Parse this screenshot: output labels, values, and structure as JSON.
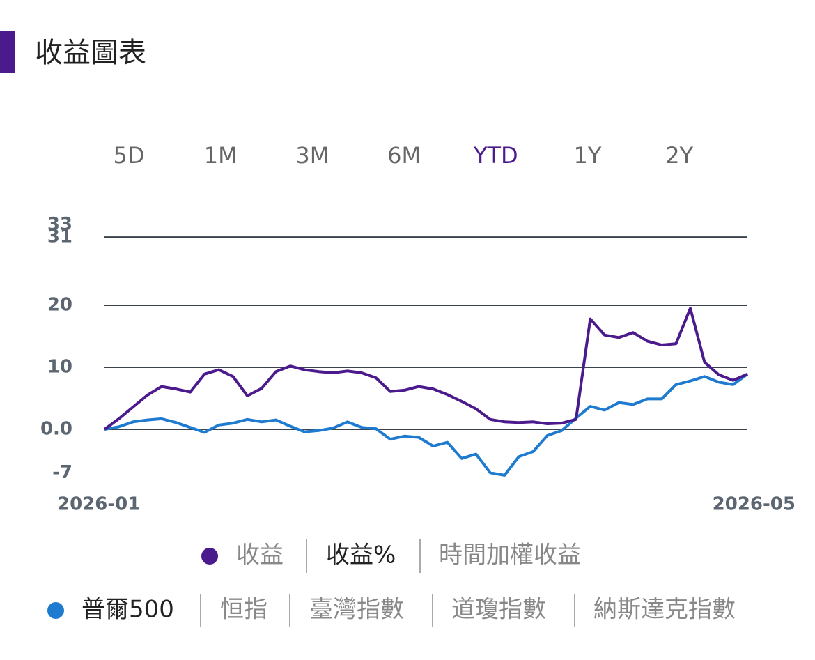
{
  "header": {
    "title": "收益圖表"
  },
  "range_tabs": {
    "options": [
      "5D",
      "1M",
      "3M",
      "6M",
      "YTD",
      "1Y",
      "2Y"
    ],
    "selected": 4
  },
  "chart_data": {
    "type": "line",
    "categories": [
      "2026-01",
      null,
      null,
      null,
      null,
      null,
      null,
      null,
      null,
      null,
      null,
      null,
      null,
      null,
      null,
      null,
      null,
      null,
      null,
      null,
      null,
      null,
      null,
      null,
      null,
      null,
      null,
      null,
      null,
      null,
      null,
      null,
      null,
      null,
      null,
      null,
      null,
      null,
      null,
      null,
      null,
      null,
      null,
      null,
      null,
      "2026-05"
    ],
    "series": [
      {
        "color": "#4b1a8c",
        "values": [
          0,
          1.7,
          3.6,
          5.5,
          6.9,
          6.5,
          6.0,
          8.9,
          9.6,
          8.5,
          5.4,
          6.6,
          9.3,
          10.2,
          9.6,
          9.3,
          9.1,
          9.4,
          9.1,
          8.3,
          6.1,
          6.3,
          6.9,
          6.5,
          5.6,
          4.5,
          3.3,
          1.6,
          1.2,
          1.1,
          1.2,
          0.9,
          1.0,
          1.6,
          17.8,
          15.2,
          14.8,
          15.6,
          14.2,
          13.6,
          13.8,
          19.5,
          10.8,
          8.8,
          7.9,
          8.9
        ]
      },
      {
        "color": "#1f7bd0",
        "values": [
          0,
          0.4,
          1.2,
          1.5,
          1.7,
          1.1,
          0.3,
          -0.5,
          0.7,
          1.0,
          1.6,
          1.2,
          1.5,
          0.5,
          -0.4,
          -0.2,
          0.2,
          1.2,
          0.3,
          0.1,
          -1.6,
          -1.1,
          -1.3,
          -2.7,
          -2.1,
          -4.7,
          -4.0,
          -7.0,
          -7.4,
          -4.4,
          -3.6,
          -1.0,
          -0.2,
          1.8,
          3.7,
          3.1,
          4.3,
          4.0,
          4.9,
          4.9,
          7.2,
          7.8,
          8.5,
          7.6,
          7.2,
          8.9
        ]
      }
    ],
    "ylim": [
      -7,
      33
    ],
    "yticks": [
      33,
      31,
      20,
      10,
      {
        "value": 0,
        "label": "0.0"
      },
      -7
    ],
    "grid": true
  },
  "metric_options": {
    "color": "#4b1a8c",
    "options": [
      "收益",
      "收益%",
      "時間加權收益"
    ],
    "selected": 1
  },
  "benchmark_options": {
    "color": "#1f7bd0",
    "options": [
      "普爾500",
      "恒指",
      "臺灣指數",
      "道瓊指數",
      "納斯達克指數"
    ],
    "selected": 0
  }
}
